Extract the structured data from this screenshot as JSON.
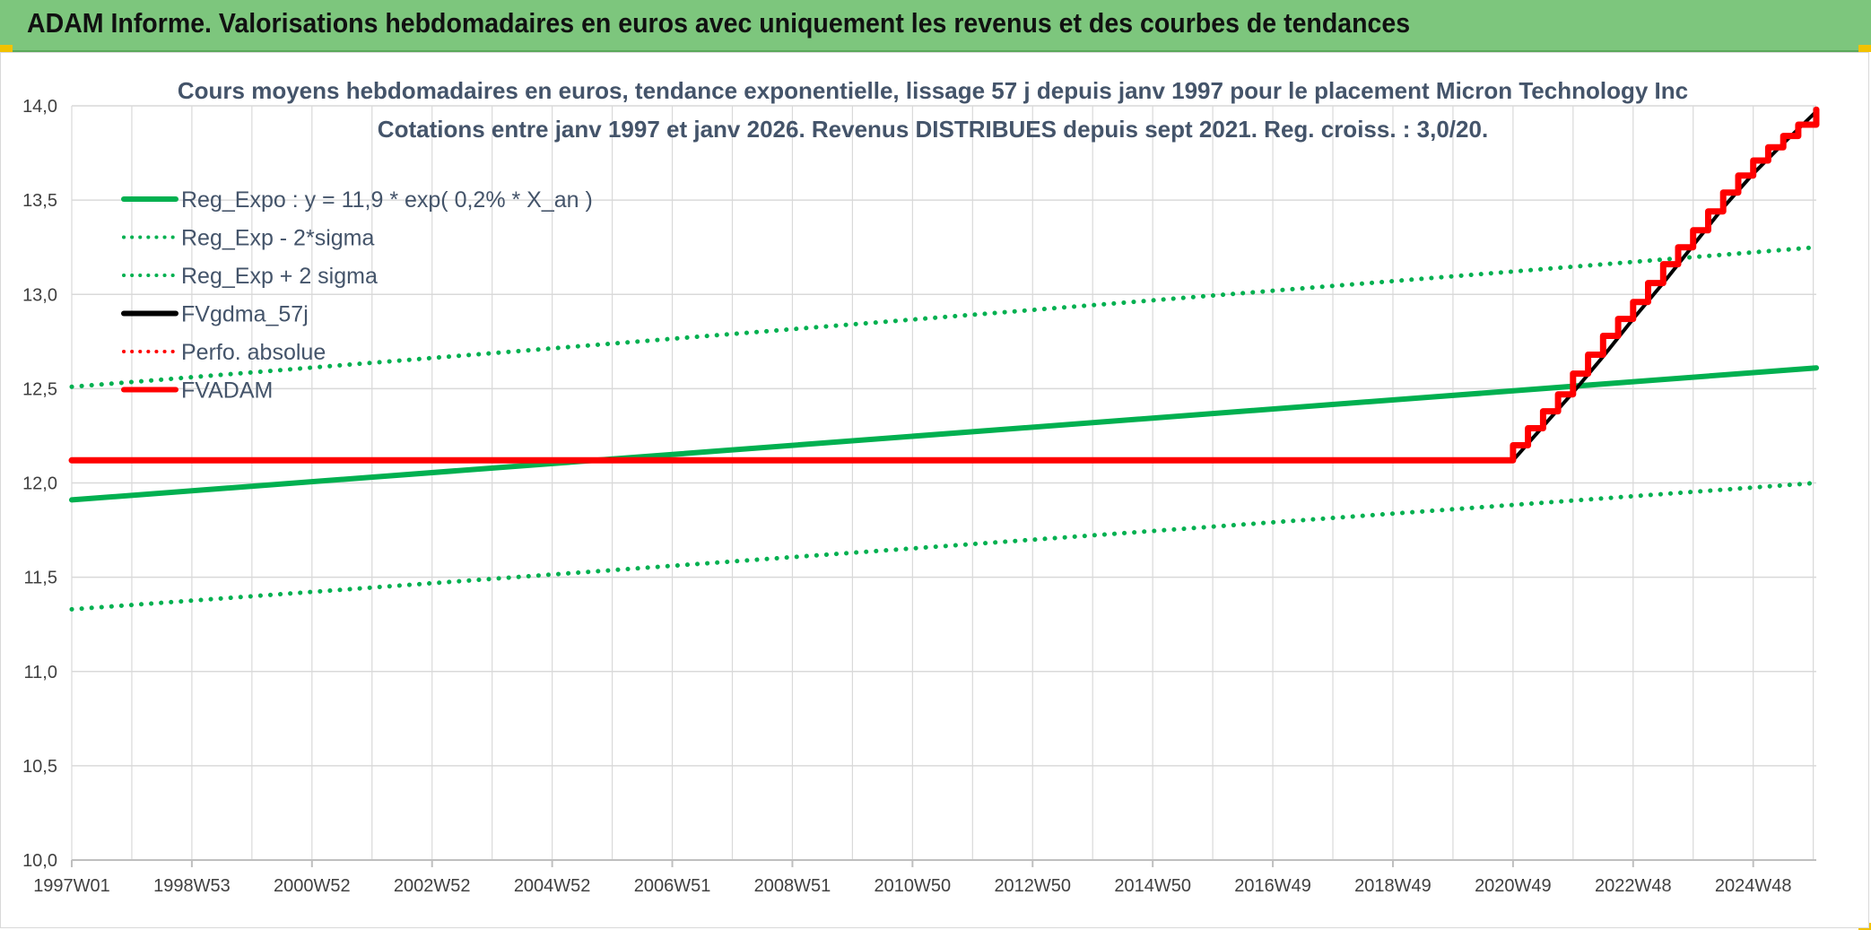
{
  "header": {
    "title": "ADAM Informe. Valorisations hebdomadaires en euros avec uniquement les revenus et des courbes de tendances"
  },
  "colors": {
    "header_bg": "#7dc67d",
    "reg_green": "#00b050",
    "adam_red": "#ff0000",
    "fv_black": "#000000",
    "grid": "#d9d9d9"
  },
  "chart_data": {
    "type": "line",
    "title": "Cours moyens hebdomadaires en euros, tendance exponentielle, lissage 57 j depuis janv 1997 pour le placement Micron Technology Inc",
    "subtitle": "Cotations entre janv 1997 et janv 2026. Revenus DISTRIBUES depuis sept 2021. Reg. croiss. : 3,0/20.",
    "xlabel": "",
    "ylabel": "",
    "x_range": [
      1997.0,
      2026.05
    ],
    "ylim": [
      10.0,
      14.0
    ],
    "y_ticks": [
      "10,0",
      "10,5",
      "11,0",
      "11,5",
      "12,0",
      "12,5",
      "13,0",
      "13,5",
      "14,0"
    ],
    "x_tick_labels": [
      "1997W01",
      "1998W53",
      "2000W52",
      "2002W52",
      "2004W52",
      "2006W51",
      "2008W51",
      "2010W50",
      "2012W50",
      "2014W50",
      "2016W49",
      "2018W49",
      "2020W49",
      "2022W48",
      "2024W48"
    ],
    "x_tick_values": [
      1997.0,
      1999.0,
      2001.0,
      2003.0,
      2005.0,
      2007.0,
      2009.0,
      2011.0,
      2013.0,
      2015.0,
      2017.0,
      2019.0,
      2021.0,
      2023.0,
      2025.0
    ],
    "grid": true,
    "legend_position": "top-left",
    "series": [
      {
        "name": "Reg_Expo : y = 11,9 * exp( 0,2% *  X_an )",
        "key": "reg",
        "style": "solid",
        "color": "#00b050",
        "x": [
          1997.0,
          2026.05
        ],
        "y": [
          11.91,
          12.61
        ]
      },
      {
        "name": "Reg_Exp - 2*sigma",
        "key": "reg_minus",
        "style": "dotted",
        "color": "#00b050",
        "x": [
          1997.0,
          2026.05
        ],
        "y": [
          11.33,
          12.0
        ]
      },
      {
        "name": "Reg_Exp + 2 sigma",
        "key": "reg_plus",
        "style": "dotted",
        "color": "#00b050",
        "x": [
          1997.0,
          2026.05
        ],
        "y": [
          12.51,
          13.25
        ]
      },
      {
        "name": "FVgdma_57j",
        "key": "fvgdma",
        "style": "solid",
        "color": "#000000",
        "x": [
          1997.0,
          2021.0,
          2021.5,
          2022.0,
          2022.5,
          2023.0,
          2023.5,
          2024.0,
          2024.5,
          2025.0,
          2025.5,
          2026.05
        ],
        "y": [
          12.12,
          12.12,
          12.3,
          12.48,
          12.67,
          12.87,
          13.06,
          13.26,
          13.46,
          13.64,
          13.8,
          13.97
        ]
      },
      {
        "name": "Perfo. absolue",
        "key": "perfo",
        "style": "dotted",
        "color": "#ff0000",
        "x": [],
        "y": []
      },
      {
        "name": "FVADAM",
        "key": "fvadam",
        "style": "solid",
        "color": "#ff0000",
        "x": [
          1997.0,
          2020.85,
          2021.0,
          2021.25,
          2021.5,
          2021.75,
          2022.0,
          2022.25,
          2022.5,
          2022.75,
          2023.0,
          2023.25,
          2023.5,
          2023.75,
          2024.0,
          2024.25,
          2024.5,
          2024.75,
          2025.0,
          2025.25,
          2025.5,
          2025.75,
          2026.05
        ],
        "y": [
          12.12,
          12.12,
          12.2,
          12.29,
          12.38,
          12.47,
          12.58,
          12.68,
          12.78,
          12.87,
          12.96,
          13.06,
          13.16,
          13.25,
          13.34,
          13.44,
          13.54,
          13.63,
          13.71,
          13.78,
          13.84,
          13.9,
          13.98
        ]
      }
    ]
  }
}
